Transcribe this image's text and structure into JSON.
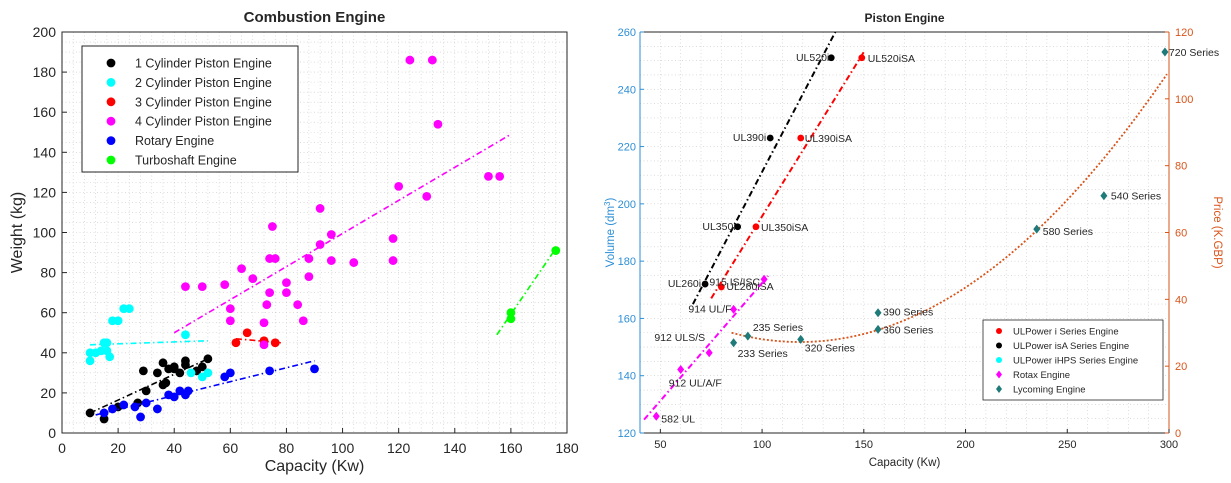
{
  "chart_data": [
    {
      "type": "scatter",
      "title": "Combustion Engine",
      "xlabel": "Capacity (Kw)",
      "ylabel": "Weight (kg)",
      "xlim": [
        0,
        180
      ],
      "ylim": [
        0,
        200
      ],
      "xticks": [
        "0",
        "20",
        "40",
        "60",
        "80",
        "100",
        "120",
        "140",
        "160",
        "180"
      ],
      "yticks": [
        "0",
        "20",
        "40",
        "60",
        "80",
        "100",
        "120",
        "140",
        "160",
        "180",
        "200"
      ],
      "grid": "minor dotted",
      "legend_position": "top-left",
      "series": [
        {
          "name": "1 Cylinder Piston Engine",
          "color": "#000000",
          "points": [
            [
              10,
              10
            ],
            [
              15,
              7
            ],
            [
              20,
              13
            ],
            [
              27,
              15
            ],
            [
              29,
              31
            ],
            [
              34,
              30
            ],
            [
              36,
              35
            ],
            [
              38,
              32
            ],
            [
              40,
              32
            ],
            [
              40,
              33
            ],
            [
              42,
              30
            ],
            [
              44,
              36
            ],
            [
              44,
              34
            ],
            [
              48,
              31
            ],
            [
              50,
              33
            ],
            [
              52,
              37
            ],
            [
              30,
              21
            ],
            [
              36,
              24
            ],
            [
              37,
              25
            ]
          ],
          "trend": [
            [
              10,
              10
            ],
            [
              52,
              37
            ]
          ]
        },
        {
          "name": "2 Cylinder Piston Engine",
          "color": "#00ffff",
          "points": [
            [
              10,
              36
            ],
            [
              10,
              40
            ],
            [
              12,
              40
            ],
            [
              14,
              41
            ],
            [
              15,
              45
            ],
            [
              16,
              45
            ],
            [
              16,
              41
            ],
            [
              17,
              38
            ],
            [
              18,
              56
            ],
            [
              20,
              56
            ],
            [
              22,
              62
            ],
            [
              24,
              62
            ],
            [
              44,
              49
            ],
            [
              46,
              30
            ],
            [
              50,
              28
            ],
            [
              52,
              30
            ]
          ],
          "trend": [
            [
              10,
              44
            ],
            [
              52,
              46
            ]
          ]
        },
        {
          "name": "3 Cylinder Piston Engine",
          "color": "#ff0000",
          "points": [
            [
              62,
              45
            ],
            [
              66,
              50
            ],
            [
              72,
              46
            ],
            [
              76,
              45
            ]
          ],
          "trend": [
            [
              62,
              47
            ],
            [
              78,
              45
            ]
          ]
        },
        {
          "name": "4 Cylinder Piston Engine",
          "color": "#ff00ff",
          "points": [
            [
              44,
              73
            ],
            [
              50,
              73
            ],
            [
              58,
              74
            ],
            [
              60,
              62
            ],
            [
              60,
              56
            ],
            [
              64,
              82
            ],
            [
              68,
              77
            ],
            [
              72,
              44
            ],
            [
              72,
              55
            ],
            [
              73,
              64
            ],
            [
              74,
              87
            ],
            [
              74,
              70
            ],
            [
              75,
              103
            ],
            [
              76,
              87
            ],
            [
              80,
              70
            ],
            [
              80,
              75
            ],
            [
              84,
              64
            ],
            [
              86,
              56
            ],
            [
              88,
              78
            ],
            [
              88,
              87
            ],
            [
              92,
              112
            ],
            [
              92,
              94
            ],
            [
              96,
              86
            ],
            [
              96,
              99
            ],
            [
              104,
              85
            ],
            [
              118,
              97
            ],
            [
              118,
              86
            ],
            [
              120,
              123
            ],
            [
              124,
              186
            ],
            [
              130,
              118
            ],
            [
              132,
              186
            ],
            [
              134,
              154
            ],
            [
              152,
              128
            ],
            [
              156,
              128
            ]
          ],
          "trend": [
            [
              40,
              50
            ],
            [
              160,
              149
            ]
          ]
        },
        {
          "name": "Rotary Engine",
          "color": "#0000ff",
          "points": [
            [
              15,
              10
            ],
            [
              18,
              12
            ],
            [
              22,
              14
            ],
            [
              26,
              13
            ],
            [
              28,
              8
            ],
            [
              30,
              15
            ],
            [
              34,
              12
            ],
            [
              38,
              19
            ],
            [
              40,
              18
            ],
            [
              42,
              21
            ],
            [
              44,
              19
            ],
            [
              45,
              21
            ],
            [
              58,
              28
            ],
            [
              60,
              30
            ],
            [
              74,
              31
            ],
            [
              90,
              32
            ]
          ],
          "trend": [
            [
              12,
              9
            ],
            [
              90,
              36
            ]
          ]
        },
        {
          "name": "Turboshaft Engine",
          "color": "#00ff00",
          "points": [
            [
              160,
              60
            ],
            [
              160,
              57
            ],
            [
              176,
              91
            ]
          ],
          "trend": [
            [
              155,
              49
            ],
            [
              176,
              92
            ]
          ]
        }
      ]
    },
    {
      "type": "scatter",
      "title": "Piston Engine",
      "xlabel": "Capacity (Kw)",
      "ylabel": "Volume (dm³)",
      "ylabel_base": "Volume (dm",
      "ylabel_sup": "3",
      "ylabel_end": ")",
      "y2label": "Price (K.GBP)",
      "xlim": [
        40,
        300
      ],
      "ylim": [
        120,
        260
      ],
      "y2lim": [
        0,
        120
      ],
      "xticks": [
        "50",
        "100",
        "150",
        "200",
        "250",
        "300"
      ],
      "yticks": [
        "120",
        "140",
        "160",
        "180",
        "200",
        "220",
        "240",
        "260"
      ],
      "y2ticks": [
        "0",
        "20",
        "40",
        "60",
        "80",
        "100",
        "120"
      ],
      "grid": "minor dotted",
      "legend_position": "bottom-right",
      "legend": [
        {
          "label": "ULPower i Series Engine",
          "color": "#ff0000",
          "marker": "circle"
        },
        {
          "label": "ULPower isA Series Engine",
          "color": "#000000",
          "marker": "circle"
        },
        {
          "label": "ULPower iHPS Series Engine",
          "color": "#00ffff",
          "marker": "circle"
        },
        {
          "label": "Rotax Engine",
          "color": "#ff00ff",
          "marker": "diamond"
        },
        {
          "label": "Lycoming Engine",
          "color": "#1f7a7a",
          "marker": "diamond"
        }
      ],
      "series": [
        {
          "color": "#000000",
          "axis": "left",
          "marker": "circle",
          "points": [
            {
              "x": 72,
              "y": 172,
              "label": "UL260i"
            },
            {
              "x": 88,
              "y": 192,
              "label": "UL350i"
            },
            {
              "x": 104,
              "y": 223,
              "label": "UL390i"
            },
            {
              "x": 134,
              "y": 251,
              "label": "UL520i"
            }
          ],
          "trend": [
            [
              66,
              165
            ],
            [
              136,
              260
            ]
          ]
        },
        {
          "color": "#ff0000",
          "axis": "left",
          "marker": "circle",
          "points": [
            {
              "x": 80,
              "y": 171,
              "label": "UL260iSA"
            },
            {
              "x": 97,
              "y": 192,
              "label": "UL350iSA"
            },
            {
              "x": 119,
              "y": 223,
              "label": "UL390iSA"
            },
            {
              "x": 149,
              "y": 251,
              "label": "UL520iSA"
            }
          ],
          "trend": [
            [
              75,
              167
            ],
            [
              150,
              253
            ]
          ]
        },
        {
          "color": "#ff00ff",
          "axis": "right",
          "marker": "diamond",
          "points": [
            {
              "x": 48,
              "y": 5,
              "label": "582 UL"
            },
            {
              "x": 60,
              "y": 19,
              "label": "912 UL/A/F"
            },
            {
              "x": 74,
              "y": 24,
              "label": "912 ULS/S"
            },
            {
              "x": 86,
              "y": 37,
              "label": "914 UL/F"
            },
            {
              "x": 101,
              "y": 46,
              "label": "915 IS/ISC"
            }
          ],
          "trend": [
            [
              42,
              4
            ],
            [
              103,
              47
            ]
          ]
        },
        {
          "color": "#1f7a7a",
          "axis": "right",
          "marker": "diamond",
          "points": [
            {
              "x": 93,
              "y": 29,
              "label": "235 Series"
            },
            {
              "x": 86,
              "y": 27,
              "label": "233 Series"
            },
            {
              "x": 119,
              "y": 28,
              "label": "320 Series"
            },
            {
              "x": 157,
              "y": 31,
              "label": "360 Series"
            },
            {
              "x": 157,
              "y": 36,
              "label": "390 Series"
            },
            {
              "x": 235,
              "y": 61,
              "label": "580 Series"
            },
            {
              "x": 268,
              "y": 71,
              "label": "540 Series"
            },
            {
              "x": 298,
              "y": 114,
              "label": "720 Series"
            }
          ],
          "trend_curve": "quadratic",
          "trend_color": "#d9541a"
        }
      ]
    }
  ]
}
